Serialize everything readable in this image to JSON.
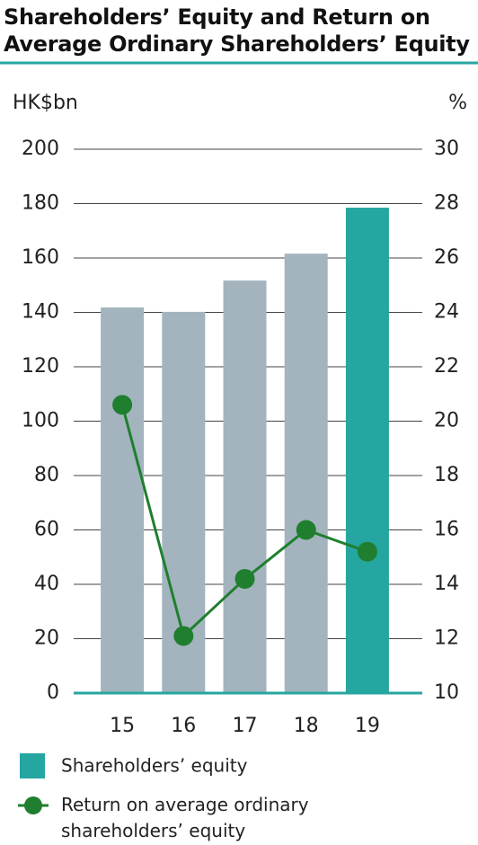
{
  "chart_data": {
    "type": "bar-line",
    "title": "Shareholders’ Equity and Return on Average Ordinary Shareholders’ Equity",
    "y_label": "HK$bn",
    "y2_label": "%",
    "categories": [
      "15",
      "16",
      "17",
      "18",
      "19"
    ],
    "series": [
      {
        "name": "Shareholders’ equity",
        "type": "bar",
        "color": "#26a6a1",
        "colors": [
          "#a3b4be",
          "#a3b4be",
          "#a3b4be",
          "#a3b4be",
          "#26a6a1"
        ],
        "values": [
          141.8,
          140.2,
          151.7,
          161.6,
          178.5
        ]
      },
      {
        "name": "Return on average ordinary shareholders’ equity",
        "type": "line",
        "axis": "y2",
        "color": "#1f7f2e",
        "values": [
          20.6,
          12.1,
          14.2,
          16.0,
          15.2
        ]
      }
    ],
    "ylim": [
      0,
      200
    ],
    "yticks": [
      0,
      20,
      40,
      60,
      80,
      100,
      120,
      140,
      160,
      180,
      200
    ],
    "y2lim": [
      10,
      30
    ],
    "y2ticks": [
      10,
      12,
      14,
      16,
      18,
      20,
      22,
      24,
      26,
      28,
      30
    ],
    "grid": true
  }
}
